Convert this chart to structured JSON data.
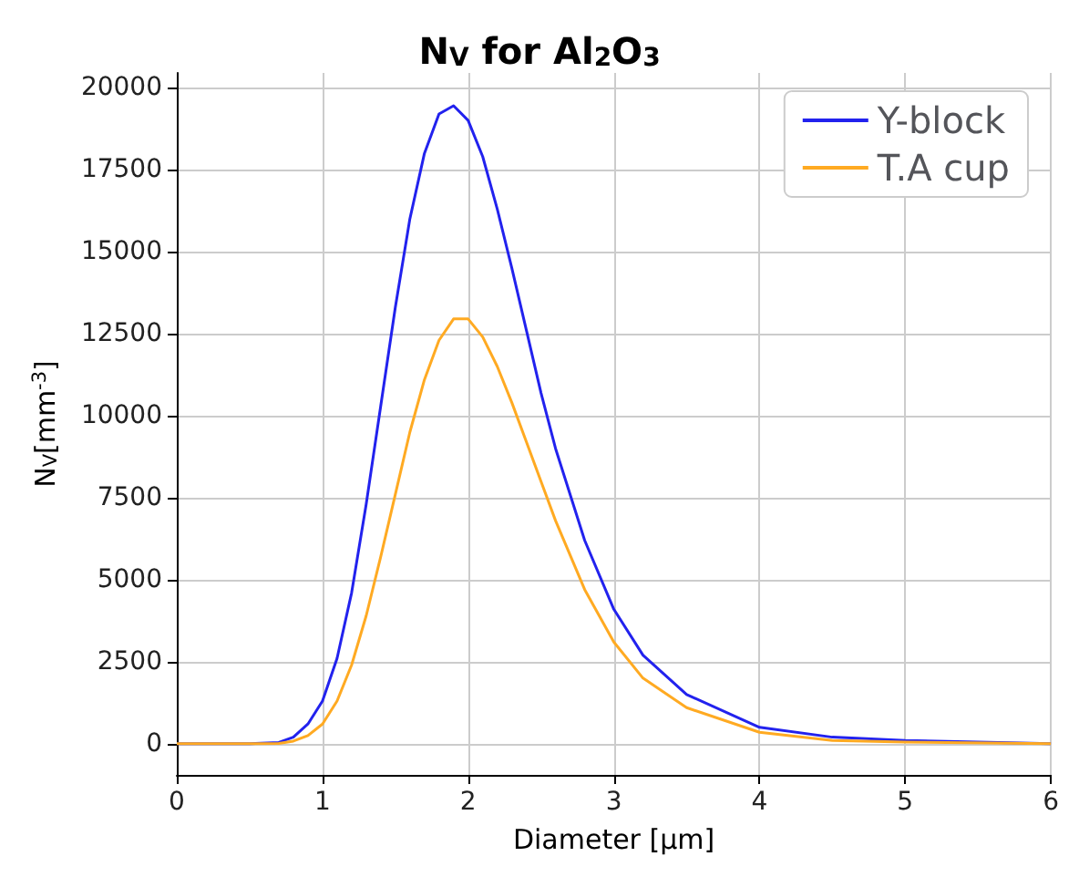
{
  "chart_data": {
    "type": "line",
    "title": "N$_{V}$ for Al$_{2}$O$_{3}$",
    "xlabel": "Diameter [µm]",
    "ylabel": "N$_{V}$[mm$^{-3}$]",
    "x": [
      0,
      0.5,
      0.7,
      0.8,
      0.9,
      1.0,
      1.1,
      1.2,
      1.3,
      1.4,
      1.5,
      1.6,
      1.7,
      1.8,
      1.9,
      2.0,
      2.1,
      2.2,
      2.3,
      2.4,
      2.5,
      2.6,
      2.8,
      3.0,
      3.2,
      3.5,
      4.0,
      4.5,
      5.0,
      6.0
    ],
    "series": [
      {
        "name": "Y-block",
        "color": "#2222ee",
        "values": [
          0,
          0,
          40,
          200,
          600,
          1300,
          2600,
          4600,
          7300,
          10300,
          13300,
          16000,
          18000,
          19200,
          19450,
          19000,
          17900,
          16300,
          14500,
          12600,
          10700,
          9000,
          6200,
          4100,
          2700,
          1500,
          500,
          200,
          100,
          0
        ]
      },
      {
        "name": "T.A cup",
        "color": "#ffaa22",
        "values": [
          0,
          0,
          10,
          80,
          250,
          600,
          1300,
          2400,
          3900,
          5700,
          7600,
          9500,
          11100,
          12300,
          12950,
          12950,
          12400,
          11500,
          10400,
          9200,
          8000,
          6800,
          4700,
          3100,
          2000,
          1100,
          350,
          100,
          50,
          0
        ]
      }
    ],
    "xlim": [
      0,
      6
    ],
    "xticks": [
      0,
      1,
      2,
      3,
      4,
      5,
      6
    ],
    "ylim": [
      -950,
      20450
    ],
    "yticks": [
      0,
      2500,
      5000,
      7500,
      10000,
      12500,
      15000,
      17500,
      20000
    ],
    "grid": true,
    "legend": "top right",
    "marker": "none",
    "line_style": "solid"
  }
}
